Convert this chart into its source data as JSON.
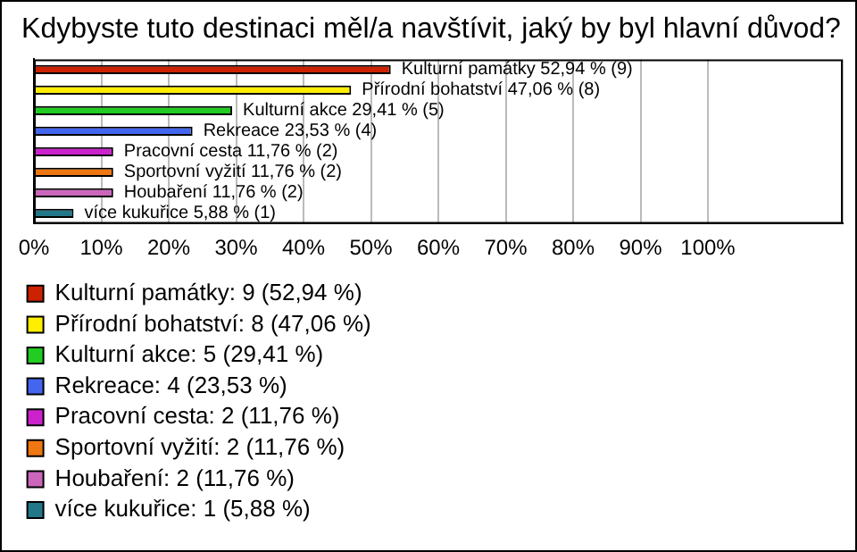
{
  "chart_data": {
    "type": "bar",
    "orientation": "horizontal",
    "stacked": true,
    "title": "Kdybyste tuto destinaci měl/a navštívit, jaký by byl hlavní důvod?",
    "categories": [
      null,
      null,
      null,
      null,
      null,
      null,
      null,
      null
    ],
    "series": [
      {
        "name": "Kulturní památky: 9 (52,94 %)",
        "color": "#cc2200",
        "values": [
          52.94,
          null,
          null,
          null,
          null,
          null,
          null,
          null
        ],
        "value_labels": [
          "Kulturní památky 52,94 % (9)",
          null,
          null,
          null,
          null,
          null,
          null,
          null
        ]
      },
      {
        "name": "Přírodní bohatství: 8 (47,06 %)",
        "color": "#ffee00",
        "values": [
          null,
          47.06,
          null,
          null,
          null,
          null,
          null,
          null
        ],
        "value_labels": [
          null,
          "Přírodní bohatství 47,06 % (8)",
          null,
          null,
          null,
          null,
          null,
          null
        ]
      },
      {
        "name": "Kulturní akce: 5 (29,41 %)",
        "color": "#22cc22",
        "values": [
          null,
          null,
          29.41,
          null,
          null,
          null,
          null,
          null
        ],
        "value_labels": [
          null,
          null,
          "Kulturní akce 29,41 % (5)",
          null,
          null,
          null,
          null,
          null
        ]
      },
      {
        "name": "Rekreace: 4 (23,53 %)",
        "color": "#4466ee",
        "values": [
          null,
          null,
          null,
          23.53,
          null,
          null,
          null,
          null
        ],
        "value_labels": [
          null,
          null,
          null,
          "Rekreace 23,53 % (4)",
          null,
          null,
          null,
          null
        ]
      },
      {
        "name": "Pracovní cesta: 2 (11,76 %)",
        "color": "#cc22cc",
        "values": [
          null,
          null,
          null,
          null,
          11.76,
          null,
          null,
          null
        ],
        "value_labels": [
          null,
          null,
          null,
          null,
          "Pracovní cesta 11,76 % (2)",
          null,
          null,
          null
        ]
      },
      {
        "name": "Sportovní vyžití: 2 (11,76 %)",
        "color": "#ee7711",
        "values": [
          null,
          null,
          null,
          null,
          null,
          11.76,
          null,
          null
        ],
        "value_labels": [
          null,
          null,
          null,
          null,
          null,
          "Sportovní vyžití 11,76 % (2)",
          null,
          null
        ]
      },
      {
        "name": "Houbaření: 2 (11,76 %)",
        "color": "#cc66bb",
        "values": [
          null,
          null,
          null,
          null,
          null,
          null,
          11.76,
          null
        ],
        "value_labels": [
          null,
          null,
          null,
          null,
          null,
          null,
          "Houbaření 11,76 % (2)",
          null
        ]
      },
      {
        "name": "více kukuřice: 1 (5,88 %)",
        "color": "#227788",
        "values": [
          null,
          null,
          null,
          null,
          null,
          null,
          null,
          5.88
        ],
        "value_labels": [
          null,
          null,
          null,
          null,
          null,
          null,
          null,
          "více kukuřice 5,88 % (1)"
        ]
      }
    ],
    "xlim": [
      0,
      120
    ],
    "xticks": [
      {
        "value": 0,
        "label": "0%"
      },
      {
        "value": 10,
        "label": "10%"
      },
      {
        "value": 20,
        "label": "20%"
      },
      {
        "value": 30,
        "label": "30%"
      },
      {
        "value": 40,
        "label": "40%"
      },
      {
        "value": 50,
        "label": "50%"
      },
      {
        "value": 60,
        "label": "60%"
      },
      {
        "value": 70,
        "label": "70%"
      },
      {
        "value": 80,
        "label": "80%"
      },
      {
        "value": 90,
        "label": "90%"
      },
      {
        "value": 100,
        "label": "100%"
      },
      {
        "value": 120,
        "label": null
      }
    ],
    "grid": "x",
    "legend": "bottom",
    "tick_labels": "x"
  }
}
